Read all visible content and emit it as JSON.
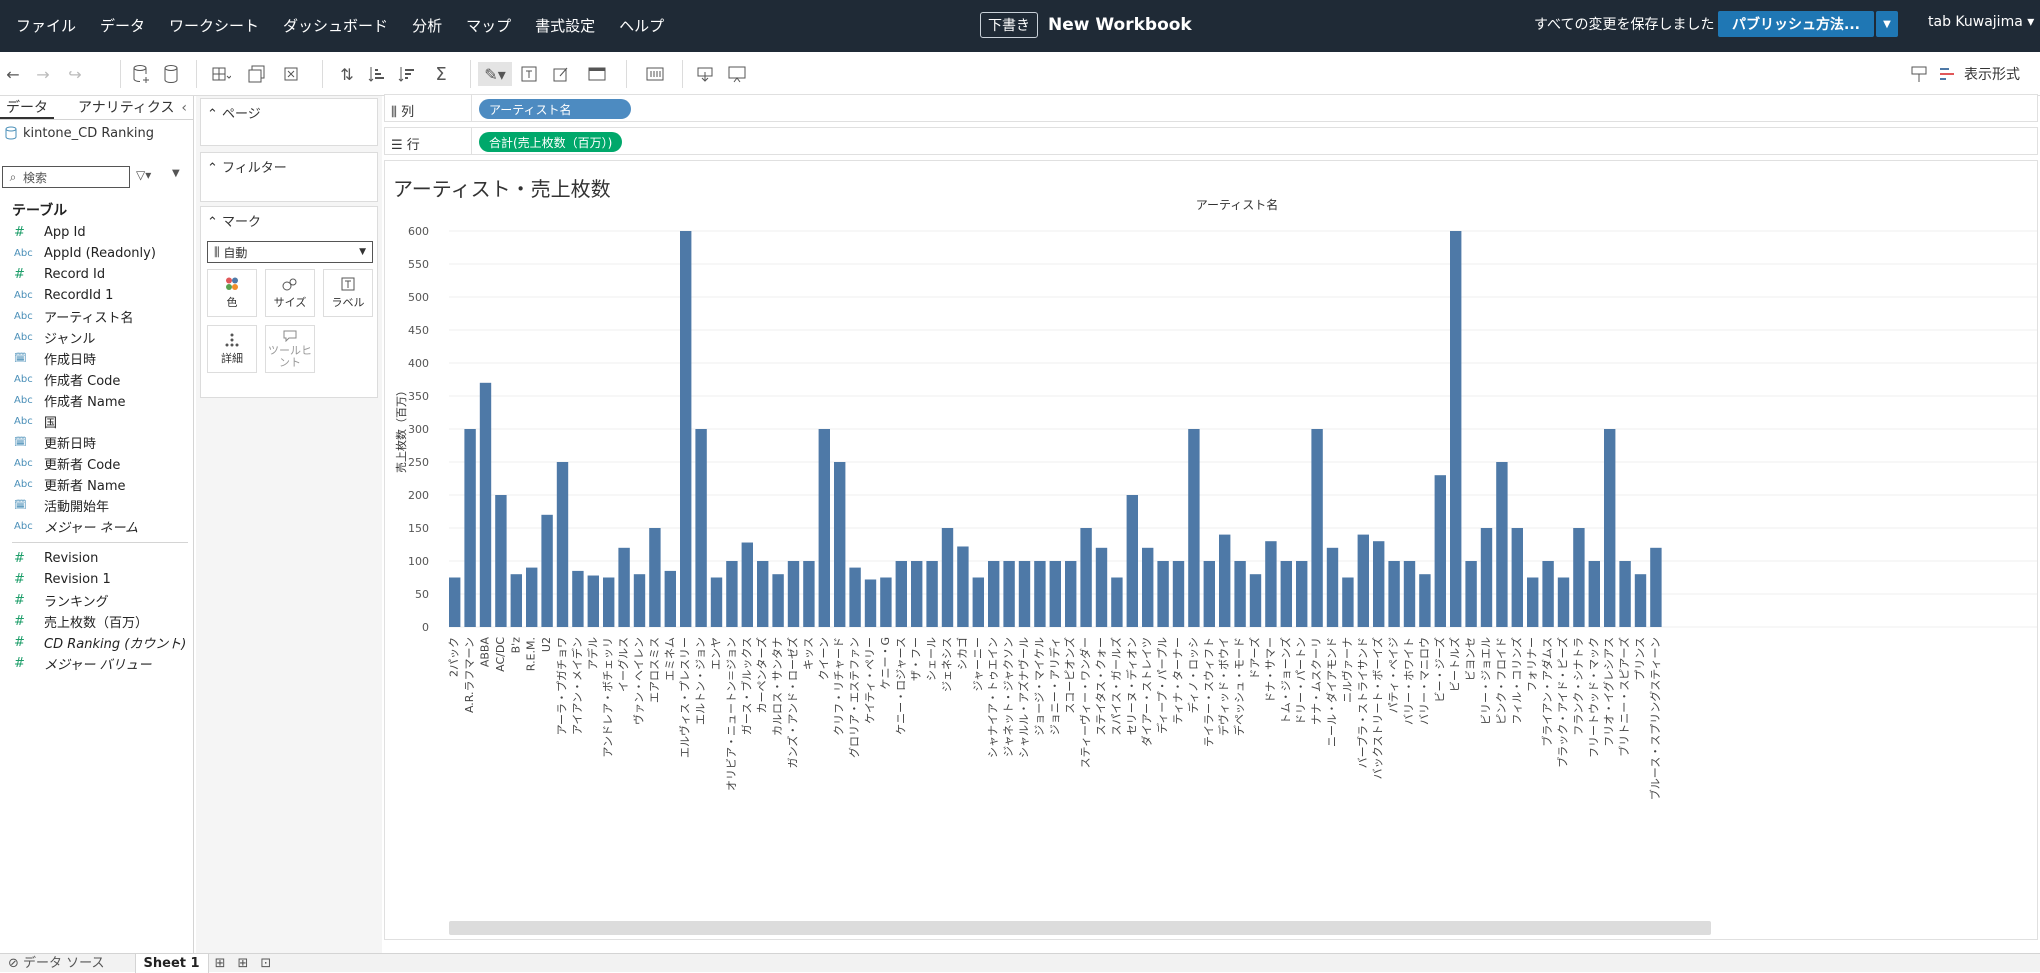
{
  "menu": [
    "ファイル",
    "データ",
    "ワークシート",
    "ダッシュボード",
    "分析",
    "マップ",
    "書式設定",
    "ヘルプ"
  ],
  "workbook": {
    "draft_badge": "下書き",
    "name": "New Workbook"
  },
  "save_status": "すべての変更を保存しました",
  "publish_label": "パブリッシュ方法...",
  "user_name": "tab Kuwajima",
  "toolbar": {
    "show_me": "表示形式"
  },
  "data_pane": {
    "tab_data": "データ",
    "tab_analytics": "アナリティクス",
    "datasource": "kintone_CD Ranking",
    "search_placeholder": "検索",
    "tables_heading": "テーブル",
    "dimensions": [
      {
        "type": "#",
        "name": "App Id",
        "measure": true
      },
      {
        "type": "Abc",
        "name": "AppId (Readonly)"
      },
      {
        "type": "#",
        "name": "Record Id",
        "measure": true
      },
      {
        "type": "Abc",
        "name": "RecordId 1"
      },
      {
        "type": "Abc",
        "name": "アーティスト名"
      },
      {
        "type": "Abc",
        "name": "ジャンル"
      },
      {
        "type": "date",
        "name": "作成日時"
      },
      {
        "type": "Abc",
        "name": "作成者 Code"
      },
      {
        "type": "Abc",
        "name": "作成者 Name"
      },
      {
        "type": "Abc",
        "name": "国"
      },
      {
        "type": "date",
        "name": "更新日時"
      },
      {
        "type": "Abc",
        "name": "更新者 Code"
      },
      {
        "type": "Abc",
        "name": "更新者 Name"
      },
      {
        "type": "date",
        "name": "活動開始年"
      },
      {
        "type": "Abc",
        "name": "メジャー ネーム",
        "italic": true
      }
    ],
    "measures": [
      {
        "type": "#",
        "name": "Revision"
      },
      {
        "type": "#",
        "name": "Revision 1"
      },
      {
        "type": "#",
        "name": "ランキング"
      },
      {
        "type": "#",
        "name": "売上枚数（百万）"
      },
      {
        "type": "#",
        "name": "CD Ranking (カウント)",
        "italic": true
      },
      {
        "type": "#",
        "name": "メジャー バリュー",
        "italic": true
      }
    ]
  },
  "cards": {
    "pages": "ページ",
    "filters": "フィルター",
    "marks": "マーク",
    "mark_type": "自動",
    "color": "色",
    "size": "サイズ",
    "label": "ラベル",
    "detail": "詳細",
    "tooltip_line1": "ツールヒ",
    "tooltip_line2": "ント"
  },
  "shelves": {
    "columns_label": "列",
    "columns_pill": "アーティスト名",
    "rows_label": "行",
    "rows_pill": "合計(売上枚数（百万）)"
  },
  "sheet_title": "アーティスト・売上枚数",
  "chart_data": {
    "type": "bar",
    "title": "",
    "header": "アーティスト名",
    "xlabel": "",
    "ylabel": "売上枚数（百万）",
    "ylim": [
      0,
      600
    ],
    "yticks": [
      0,
      50,
      100,
      150,
      200,
      250,
      300,
      350,
      400,
      450,
      500,
      550,
      600
    ],
    "bar_color": "#4e79a7",
    "categories": [
      "2パック",
      "A.R.ラフマーン",
      "ABBA",
      "AC/DC",
      "B'z",
      "R.E.M.",
      "U2",
      "アーラ・プガチョワ",
      "アイアン・メイデン",
      "アデル",
      "アンドレア・ボチェッリ",
      "イーグルス",
      "ヴァン・ヘイレン",
      "エアロスミス",
      "エミネム",
      "エルヴィス・プレスリー",
      "エルトン・ジョン",
      "エンヤ",
      "オリビア・ニュートン＝ジョン",
      "ガース・ブルックス",
      "カーペンターズ",
      "カルロス・サンタナ",
      "ガンズ・アンド・ローゼズ",
      "キッス",
      "クイーン",
      "クリフ・リチャード",
      "グロリア・エステファン",
      "ケイティ・ペリー",
      "ケニー・G",
      "ケニー・ロジャース",
      "ザ・フー",
      "シェール",
      "ジェネシス",
      "シカゴ",
      "ジャーニー",
      "シャナイア・トゥエイン",
      "ジャネット・ジャクソン",
      "シャルル・アズナヴール",
      "ジョージ・マイケル",
      "ジョニー・アリディ",
      "スコーピオンズ",
      "スティーヴィー・ワンダー",
      "ステイタス・クォー",
      "スパイス・ガールズ",
      "セリーヌ・ディオン",
      "ダイアー・ストレイツ",
      "ディープ・パープル",
      "ティナ・ターナー",
      "ディノ・ロッシ",
      "テイラー・スウィフト",
      "デヴィッド・ボウイ",
      "デペッシュ・モード",
      "ドアーズ",
      "ドナ・サマー",
      "トム・ジョーンズ",
      "ドリー・パートン",
      "ナナ・ムスクーリ",
      "ニール・ダイアモンド",
      "ニルヴァーナ",
      "バーブラ・ストライサンド",
      "バックストリート・ボーイズ",
      "パティ・ペイジ",
      "バリー・ホワイト",
      "バリー・マニロウ",
      "ビー・ジーズ",
      "ビートルズ",
      "ビヨンセ",
      "ビリー・ジョエル",
      "ピンク・フロイド",
      "フィル・コリンズ",
      "フォリナー",
      "ブライアン・アダムス",
      "ブラック・アイド・ピーズ",
      "フランク・シナトラ",
      "フリートウッド・マック",
      "フリオ・イグレシアス",
      "ブリトニー・スピアーズ",
      "プリンス",
      "ブルース・スプリングスティーン"
    ],
    "values": [
      75,
      300,
      370,
      200,
      80,
      90,
      170,
      250,
      85,
      78,
      75,
      120,
      80,
      150,
      85,
      600,
      300,
      75,
      100,
      128,
      100,
      80,
      100,
      100,
      300,
      250,
      90,
      72,
      75,
      100,
      100,
      100,
      150,
      122,
      75,
      100,
      100,
      100,
      100,
      100,
      100,
      150,
      120,
      75,
      200,
      120,
      100,
      100,
      300,
      100,
      140,
      100,
      80,
      130,
      100,
      100,
      300,
      120,
      75,
      140,
      130,
      100,
      100,
      80,
      230,
      600,
      100,
      150,
      250,
      150,
      75,
      100,
      75,
      150,
      100,
      300,
      100,
      80,
      120
    ]
  },
  "bottom": {
    "datasource_tab": "データ ソース",
    "sheet_tab": "Sheet 1"
  }
}
